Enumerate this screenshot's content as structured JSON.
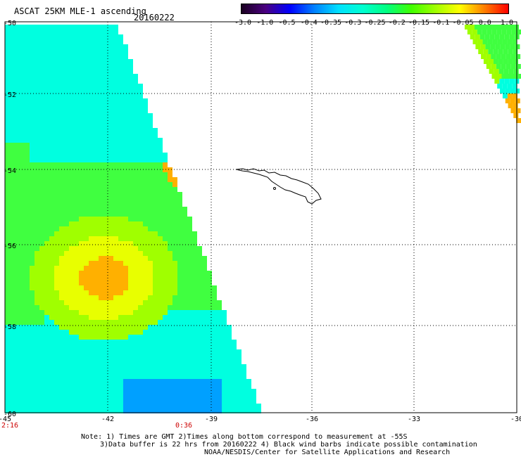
{
  "header": {
    "title": "ASCAT 25KM MLE-1 ascending",
    "date": "20160222"
  },
  "colorbar": {
    "ticks": [
      "-3.0",
      "-1.0",
      "-0.5",
      "-0.4",
      "-0.35",
      "-0.3",
      "-0.25",
      "-0.2",
      "-0.15",
      "-0.1",
      "-0.05",
      "0.0",
      "1.0"
    ],
    "colors": [
      "#1a0020",
      "#4a0080",
      "#0000ff",
      "#0080ff",
      "#00e0ff",
      "#00ffd0",
      "#00ff80",
      "#40ff00",
      "#a0ff00",
      "#ffff00",
      "#ff8000",
      "#ff0000"
    ]
  },
  "map": {
    "lat_labels": [
      "-50",
      "-52",
      "-54",
      "-56",
      "-58",
      "-60"
    ],
    "lon_labels": [
      "-45",
      "-42",
      "-39",
      "-36",
      "-33",
      "-30"
    ],
    "time_labels": [
      "2:16",
      "0:36"
    ],
    "swath_colors": {
      "cyan": "#00ffe0",
      "green": "#40ff40",
      "lime": "#a0ff00",
      "yellow": "#e8ff00",
      "orange": "#ffb000",
      "blue": "#00a0ff"
    }
  },
  "notes": {
    "line1": "Note: 1) Times are GMT 2)Times along bottom correspond to measurement at -55S",
    "line2": "3)Data buffer is 22 hrs from 20160222 4) Black wind barbs indicate possible contamination",
    "line3": "NOAA/NESDIS/Center for Satellite Applications and Research"
  }
}
